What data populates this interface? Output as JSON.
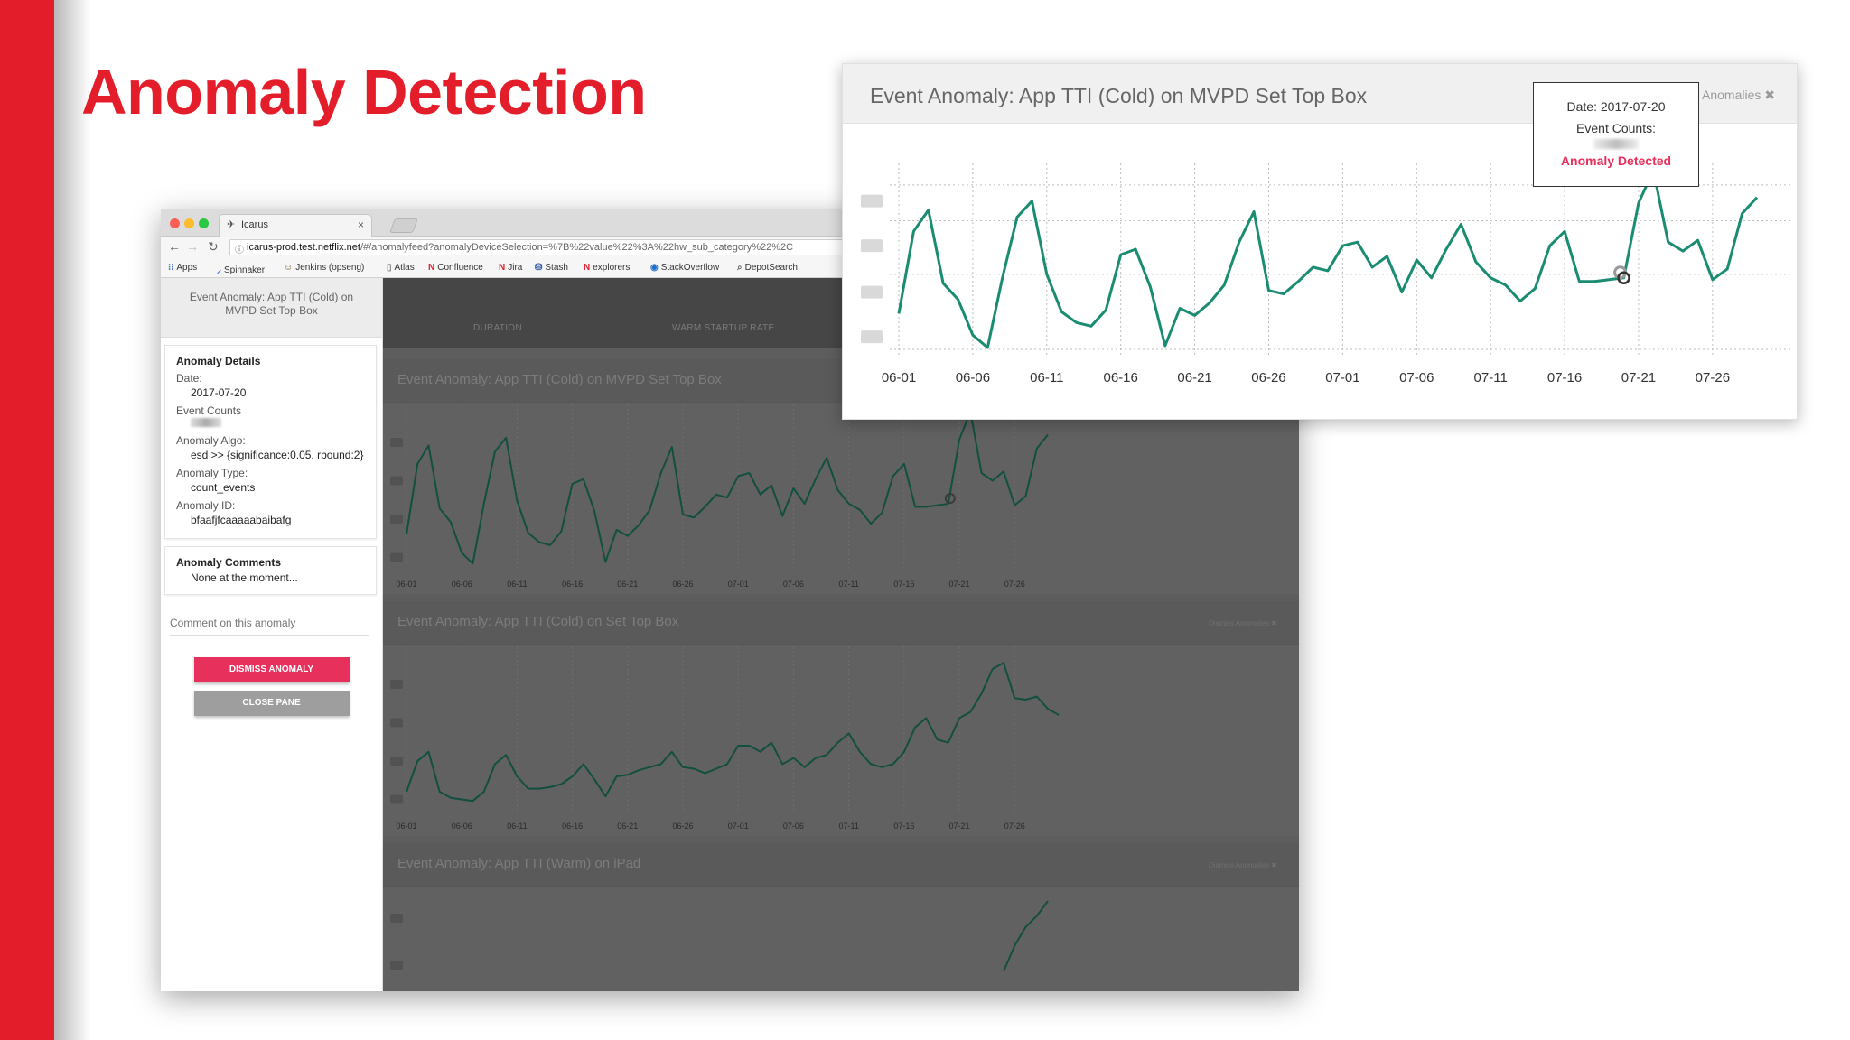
{
  "slide": {
    "title": "Anomaly Detection",
    "accent": "#e41d2a"
  },
  "browser": {
    "tab_title": "Icarus",
    "url_host": "icarus-prod.test.netflix.net",
    "url_path": "/#/anomalyfeed?anomalyDeviceSelection=%7B%22value%22%3A%22hw_sub_category%22%2C",
    "bookmarks": [
      "Apps",
      "Spinnaker",
      "Jenkins (opseng)",
      "Atlas",
      "Confluence",
      "Jira",
      "Stash",
      "explorers",
      "StackOverflow",
      "DepotSearch"
    ]
  },
  "pane": {
    "header": "Event Anomaly: App TTI (Cold) on MVPD Set Top Box",
    "details_title": "Anomaly Details",
    "date_label": "Date:",
    "date_value": "2017-07-20",
    "counts_label": "Event Counts",
    "algo_label": "Anomaly Algo:",
    "algo_value": "esd >> {significance:0.05, rbound:2}",
    "type_label": "Anomaly Type:",
    "type_value": "count_events",
    "id_label": "Anomaly ID:",
    "id_value": "bfaafjfcaaaaabaibafg",
    "comments_title": "Anomaly Comments",
    "comments_value": "None at the moment...",
    "comment_placeholder": "Comment on this anomaly",
    "dismiss_label": "DISMISS ANOMALY",
    "close_label": "CLOSE PANE"
  },
  "table": {
    "col_duration": "DURATION",
    "col_warm": "WARM STARTUP RATE"
  },
  "charts": [
    {
      "title": "Event Anomaly: App TTI (Cold) on MVPD Set Top Box",
      "dismiss": ""
    },
    {
      "title": "Event Anomaly: App TTI (Cold) on Set Top Box",
      "dismiss": "Dismiss Anomalies ✖"
    },
    {
      "title": "Event Anomaly: App TTI (Warm) on iPad",
      "dismiss": "Dismiss Anomalies ✖"
    }
  ],
  "zoom": {
    "title": "Event Anomaly: App TTI (Cold) on MVPD Set Top Box",
    "dismiss": "Dismiss Anomalies ✖",
    "tooltip_date": "Date: 2017-07-20",
    "tooltip_counts": "Event Counts:",
    "tooltip_status": "Anomaly Detected",
    "line_color": "#1a8c72",
    "anomaly_color": "#e8305d"
  },
  "chart_data": [
    {
      "type": "line",
      "title": "Event Anomaly: App TTI (Cold) on MVPD Set Top Box",
      "x_ticks": [
        "06-01",
        "06-06",
        "06-11",
        "06-16",
        "06-21",
        "06-26",
        "07-01",
        "07-06",
        "07-11",
        "07-16",
        "07-21",
        "07-26"
      ],
      "x": [
        "06-01",
        "06-02",
        "06-03",
        "06-04",
        "06-05",
        "06-06",
        "06-07",
        "06-08",
        "06-09",
        "06-10",
        "06-11",
        "06-12",
        "06-13",
        "06-14",
        "06-15",
        "06-16",
        "06-17",
        "06-18",
        "06-19",
        "06-20",
        "06-21",
        "06-22",
        "06-23",
        "06-24",
        "06-25",
        "06-26",
        "06-27",
        "06-28",
        "06-29",
        "06-30",
        "07-01",
        "07-02",
        "07-03",
        "07-04",
        "07-05",
        "07-06",
        "07-07",
        "07-08",
        "07-09",
        "07-10",
        "07-11",
        "07-12",
        "07-13",
        "07-14",
        "07-15",
        "07-16",
        "07-17",
        "07-18",
        "07-19",
        "07-20",
        "07-21",
        "07-22",
        "07-23",
        "07-24",
        "07-25",
        "07-26",
        "07-27",
        "07-28",
        "07-29"
      ],
      "values": [
        0.2,
        0.66,
        0.78,
        0.37,
        0.28,
        0.08,
        0.01,
        0.4,
        0.74,
        0.83,
        0.42,
        0.21,
        0.15,
        0.13,
        0.22,
        0.53,
        0.56,
        0.35,
        0.02,
        0.23,
        0.19,
        0.26,
        0.36,
        0.6,
        0.77,
        0.33,
        0.31,
        0.38,
        0.46,
        0.44,
        0.58,
        0.6,
        0.46,
        0.52,
        0.32,
        0.5,
        0.4,
        0.56,
        0.7,
        0.49,
        0.4,
        0.36,
        0.27,
        0.34,
        0.58,
        0.66,
        0.38,
        0.38,
        0.39,
        0.4,
        0.82,
        1.0,
        0.6,
        0.55,
        0.61,
        0.39,
        0.45,
        0.76,
        0.85
      ],
      "anomaly_x": "07-20",
      "grid": true
    },
    {
      "type": "line",
      "title": "Event Anomaly: App TTI (Cold) on Set Top Box",
      "x_ticks": [
        "06-01",
        "06-06",
        "06-11",
        "06-16",
        "06-21",
        "06-26",
        "07-01",
        "07-06",
        "07-11",
        "07-16",
        "07-21",
        "07-26"
      ],
      "values": [
        0.1,
        0.3,
        0.36,
        0.1,
        0.06,
        0.05,
        0.04,
        0.1,
        0.28,
        0.34,
        0.2,
        0.12,
        0.12,
        0.13,
        0.15,
        0.2,
        0.28,
        0.18,
        0.07,
        0.2,
        0.21,
        0.24,
        0.26,
        0.28,
        0.36,
        0.26,
        0.25,
        0.22,
        0.25,
        0.28,
        0.4,
        0.4,
        0.36,
        0.42,
        0.28,
        0.32,
        0.26,
        0.32,
        0.34,
        0.42,
        0.48,
        0.36,
        0.28,
        0.26,
        0.28,
        0.36,
        0.52,
        0.58,
        0.44,
        0.42,
        0.58,
        0.62,
        0.74,
        0.9,
        0.94,
        0.71,
        0.7,
        0.72,
        0.64,
        0.6
      ]
    },
    {
      "type": "line",
      "title": "Event Anomaly: App TTI (Warm) on iPad",
      "values": [
        0.0,
        0.35,
        0.6,
        0.75,
        0.95
      ]
    }
  ]
}
